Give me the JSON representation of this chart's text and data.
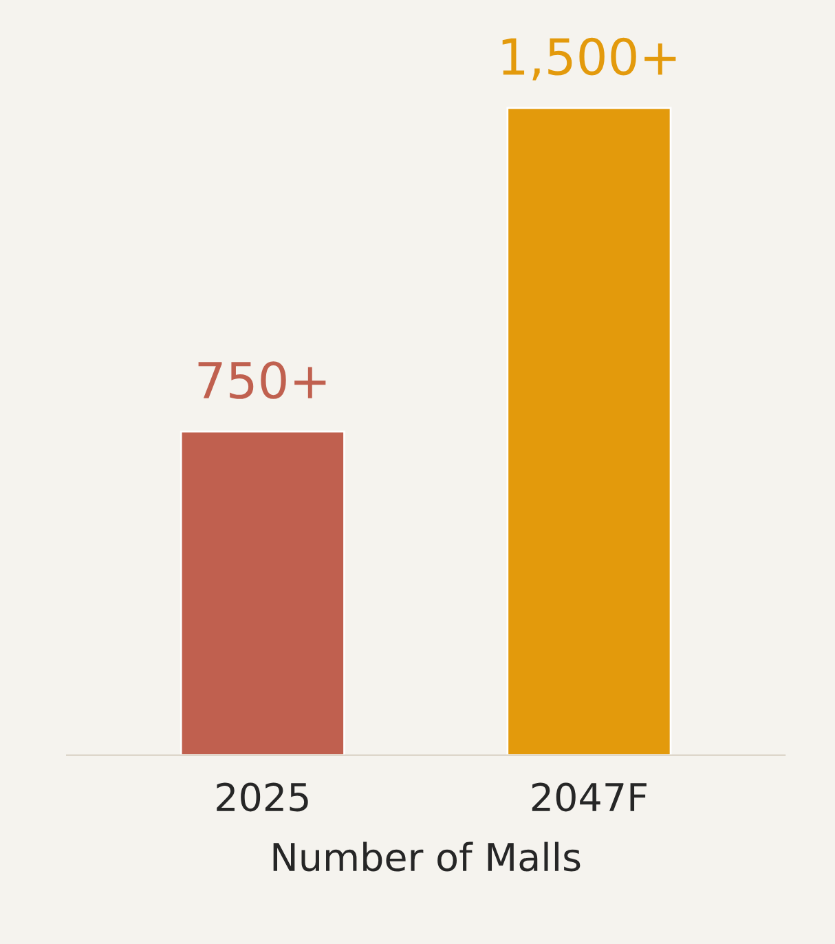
{
  "chart_data": {
    "type": "bar",
    "xlabel": "Number of Malls",
    "categories": [
      "2025",
      "2047F"
    ],
    "values": [
      750,
      1500
    ],
    "colors": [
      "#c0604f",
      "#e39a0c"
    ],
    "value_labels": [
      "750+",
      "1,500+"
    ]
  }
}
